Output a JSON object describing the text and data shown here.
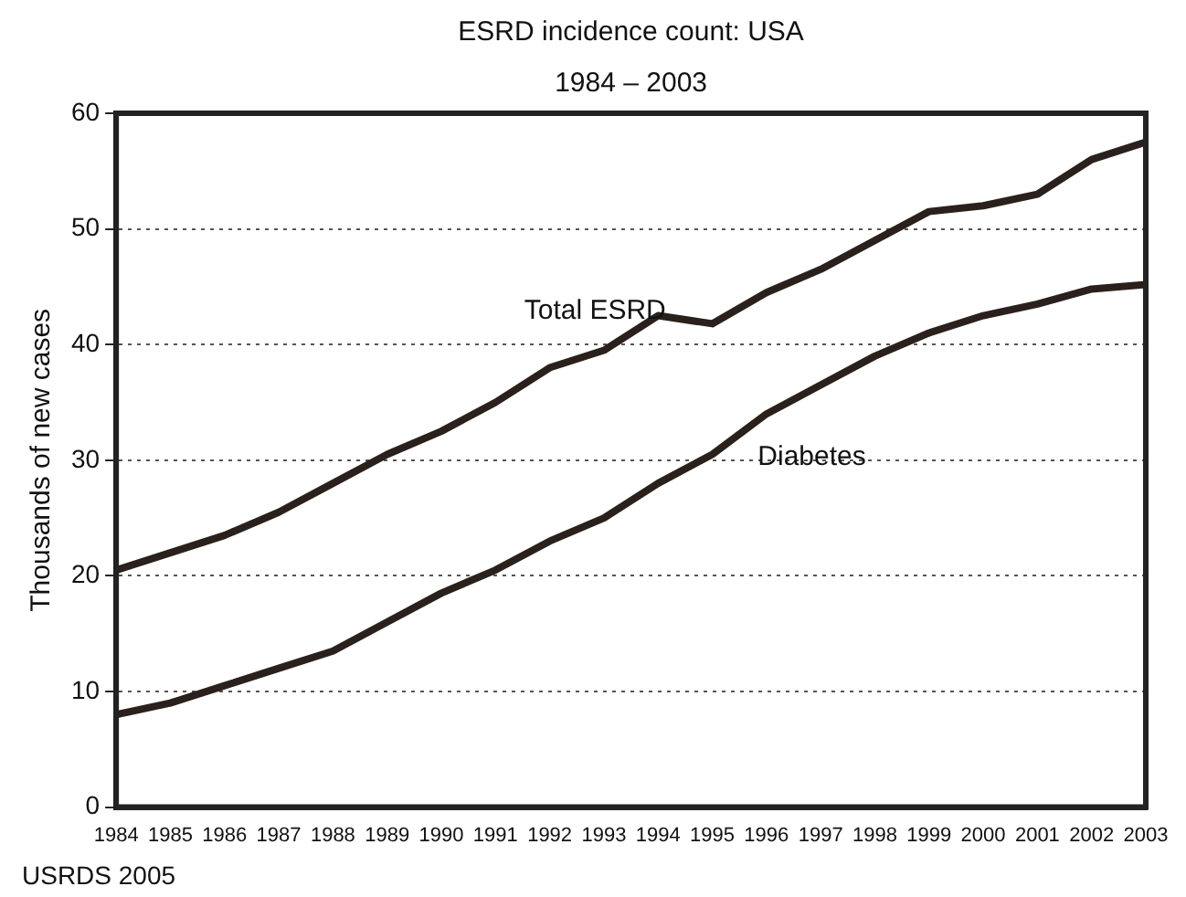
{
  "chart_data": {
    "type": "line",
    "title": "ESRD incidence count: USA",
    "subtitle": "1984 – 2003",
    "ylabel": "Thousands of new cases",
    "x": [
      1984,
      1985,
      1986,
      1987,
      1988,
      1989,
      1990,
      1991,
      1992,
      1993,
      1994,
      1995,
      1996,
      1997,
      1998,
      1999,
      2000,
      2001,
      2002,
      2003
    ],
    "series": [
      {
        "name": "Total ESRD",
        "color": "#2a201c",
        "values": [
          20.5,
          22,
          23.5,
          25.5,
          28,
          30.5,
          32.5,
          35,
          38,
          39.5,
          42.5,
          41.8,
          44.5,
          46.5,
          49,
          51.5,
          52,
          53,
          56,
          57.5
        ]
      },
      {
        "name": "Diabetes",
        "color": "#2a201c",
        "values": [
          8,
          9,
          10.5,
          12,
          13.5,
          16,
          18.5,
          20.5,
          23,
          25,
          28,
          30.5,
          34,
          36.5,
          39,
          41,
          42.5,
          43.5,
          44.8,
          45.2
        ]
      }
    ],
    "xlim": [
      1984,
      2003
    ],
    "xticks": [
      1984,
      1985,
      1986,
      1987,
      1988,
      1989,
      1990,
      1991,
      1992,
      1993,
      1994,
      1995,
      1996,
      1997,
      1998,
      1999,
      2000,
      2001,
      2002,
      2003
    ],
    "ylim": [
      0,
      60
    ],
    "yticks": [
      0,
      10,
      20,
      30,
      40,
      50,
      60
    ],
    "grid": "y",
    "legend": false,
    "marker": "none",
    "line_style": "solid",
    "annotations": [
      "USRDS 2005"
    ]
  }
}
